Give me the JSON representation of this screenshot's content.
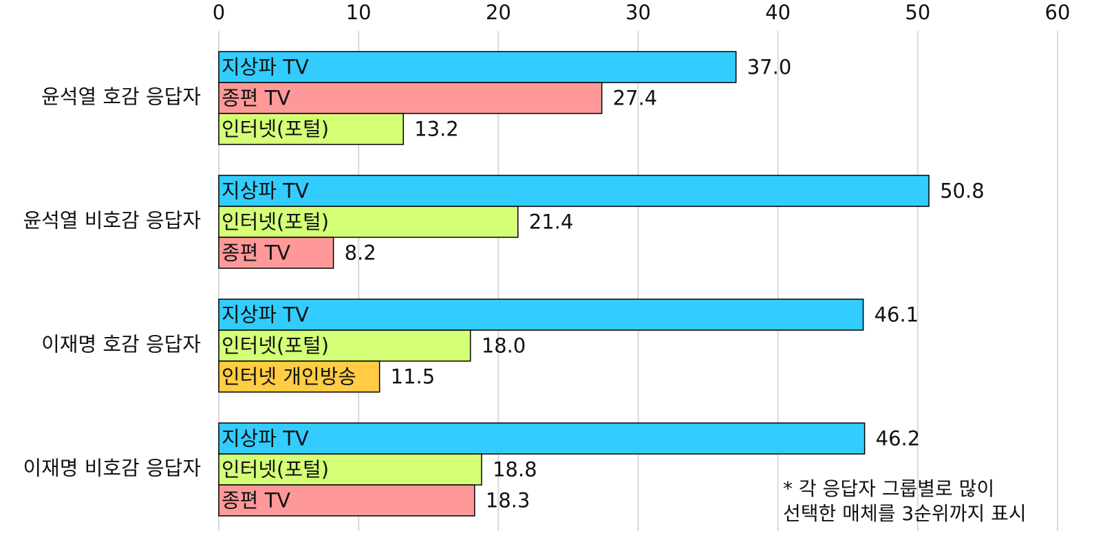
{
  "chart_data": {
    "type": "bar",
    "orientation": "horizontal",
    "categories": [
      "윤석열 호감 응답자",
      "윤석열 비호감 응답자",
      "이재명 호감 응답자",
      "이재명 비호감 응답자"
    ],
    "groups": [
      {
        "names": [
          "지상파 TV",
          "종편 TV",
          "인터넷(포털)"
        ],
        "values": [
          37.0,
          27.4,
          13.2
        ],
        "value_labels": [
          "37.0",
          "27.4",
          "13.2"
        ],
        "colors": [
          "#33ccff",
          "#ff9999",
          "#d4ff77"
        ]
      },
      {
        "names": [
          "지상파 TV",
          "인터넷(포털)",
          "종편 TV"
        ],
        "values": [
          50.8,
          21.4,
          8.2
        ],
        "value_labels": [
          "50.8",
          "21.4",
          "8.2"
        ],
        "colors": [
          "#33ccff",
          "#d4ff77",
          "#ff9999"
        ]
      },
      {
        "names": [
          "지상파 TV",
          "인터넷(포털)",
          "인터넷 개인방송"
        ],
        "values": [
          46.1,
          18.0,
          11.5
        ],
        "value_labels": [
          "46.1",
          "18.0",
          "11.5"
        ],
        "colors": [
          "#33ccff",
          "#d4ff77",
          "#ffcc44"
        ]
      },
      {
        "names": [
          "지상파 TV",
          "인터넷(포털)",
          "종편 TV"
        ],
        "values": [
          46.2,
          18.8,
          18.3
        ],
        "value_labels": [
          "46.2",
          "18.8",
          "18.3"
        ],
        "colors": [
          "#33ccff",
          "#d4ff77",
          "#ff9999"
        ]
      }
    ],
    "xlim": [
      0,
      60
    ],
    "xticks": [
      0,
      10,
      20,
      30,
      40,
      50,
      60
    ],
    "grid": true,
    "annotation": [
      "* 각 응답자 그룹별로 많이",
      "선택한 매체를 3순위까지 표시"
    ]
  }
}
